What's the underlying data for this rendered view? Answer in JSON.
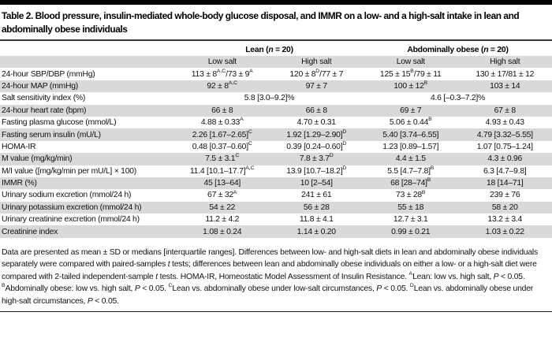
{
  "title": "Table 2. Blood pressure, insulin-mediated whole-body glucose disposal, and IMMR on a low- and a high-salt intake in lean and abdominally obese individuals",
  "table": {
    "groups": [
      "Lean (*n* = 20)",
      "Abdominally obese (*n* = 20)"
    ],
    "subheaders": [
      "Low salt",
      "High salt",
      "Low salt",
      "High salt"
    ],
    "rows": [
      {
        "label": "24-hour SBP/DBP (mmHg)",
        "shade": false,
        "cells": [
          "113 ± 8^{A,C}/73 ± 9^{A}",
          "120 ± 8^{D}/77 ± 7",
          "125 ± 15^{B}/79 ± 11",
          "130 ± 17/81 ± 12"
        ]
      },
      {
        "label": "24-hour MAP (mmHg)",
        "shade": true,
        "cells": [
          "92 ± 8^{A,C}",
          "97 ± 7",
          "100 ± 12^{B}",
          "103 ± 14"
        ]
      },
      {
        "label": "Salt sensitivity index (%)",
        "shade": false,
        "span2": [
          "5.8 [3.0–9.2]%",
          "4.6 [–0.3–7.2]%"
        ]
      },
      {
        "label": "24-hour heart rate (bpm)",
        "shade": true,
        "cells": [
          "66 ± 8",
          "66 ± 8",
          "69 ± 7",
          "67 ± 8"
        ]
      },
      {
        "label": "Fasting plasma glucose (mmol/L)",
        "shade": false,
        "cells": [
          "4.88 ± 0.33^{A}",
          "4.70 ± 0.31",
          "5.06 ± 0.44^{B}",
          "4.93 ± 0.43"
        ]
      },
      {
        "label": "Fasting serum insulin (mU/L)",
        "shade": true,
        "cells": [
          "2.26 [1.67–2.65]^{C}",
          "1.92 [1.29–2.90]^{D}",
          "5.40 [3.74–6.55]",
          "4.79 [3.32–5.55]"
        ]
      },
      {
        "label": "HOMA-IR",
        "shade": false,
        "cells": [
          "0.48 [0.37–0.60]^{C}",
          "0.39 [0.24–0.60]^{D}",
          "1.23 [0.89–1.57]",
          "1.07 [0.75–1.24]"
        ]
      },
      {
        "label": "M value (mg/kg/min)",
        "shade": true,
        "cells": [
          "7.5 ± 3.1^{C}",
          "7.8 ± 3.7^{D}",
          "4.4 ± 1.5",
          "4.3 ± 0.96"
        ]
      },
      {
        "label": "M/I value ([mg/kg/min per mU/L] × 100)",
        "shade": false,
        "cells": [
          "11.4 [10.1–17.7]^{A,C}",
          "13.9 [10.7–18.2]^{D}",
          "5.5 [4.7–7.8]^{B}",
          "6.3 [4.7–9.8]"
        ]
      },
      {
        "label": "IMMR (%)",
        "shade": true,
        "cells": [
          "45 [13–64]",
          "10 [2–54]",
          "68 [28–74]^{B}",
          "18 [14–71]"
        ]
      },
      {
        "label": "Urinary sodium excretion (mmol/24 h)",
        "shade": false,
        "cells": [
          "67 ± 32^{A}",
          "241 ± 61",
          "73 ± 28^{B}",
          "239 ± 76"
        ]
      },
      {
        "label": "Urinary potassium excretion (mmol/24 h)",
        "shade": true,
        "cells": [
          "54 ± 22",
          "56 ± 28",
          "55 ± 18",
          "58 ± 20"
        ]
      },
      {
        "label": "Urinary creatinine excretion (mmol/24 h)",
        "shade": false,
        "cells": [
          "11.2 ± 4.2",
          "11.8 ± 4.1",
          "12.7 ± 3.1",
          "13.2 ± 3.4"
        ]
      },
      {
        "label": "Creatinine index",
        "shade": true,
        "cells": [
          "1.08 ± 0.24",
          "1.14 ± 0.20",
          "0.99 ± 0.21",
          "1.03 ± 0.22"
        ]
      }
    ]
  },
  "footnote": "Data are presented as mean ± SD or medians [interquartile ranges]. Differences between low- and high-salt diets in lean and abdominally obese individuals separately were compared with paired-samples *t* tests; differences between lean and abdominally obese individuals on either a low- or a high-salt diet were compared with 2-tailed independent-sample *t* tests. HOMA-IR, Homeostatic Model Assessment of Insulin Resistance. ^{A}Lean: low vs. high salt, *P* < 0.05. ^{B}Abdominally obese: low vs. high salt, *P* < 0.05. ^{C}Lean vs. abdominally obese under low-salt circumstances, *P* < 0.05. ^{D}Lean vs. abdominally obese under high-salt circumstances, *P* < 0.05.",
  "colors": {
    "row_shade": "#d9d9d9",
    "rule": "#000000",
    "text": "#111111"
  }
}
